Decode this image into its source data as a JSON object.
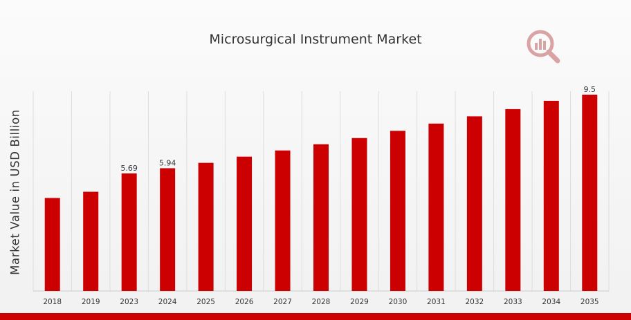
{
  "colors": {
    "bar": "#cc0000",
    "accent": "#cc0000",
    "logo": "#d9a3a3",
    "grid": "#dddddd",
    "text": "#333333"
  },
  "logo": {
    "icon": "analytics-magnifier-logo-icon"
  },
  "chart_data": {
    "type": "bar",
    "title": "Microsurgical Instrument Market",
    "xlabel": "",
    "ylabel": "Market Value in USD Billion",
    "ylim": [
      0,
      10
    ],
    "grid": true,
    "categories": [
      "2018",
      "2019",
      "2023",
      "2024",
      "2025",
      "2026",
      "2027",
      "2028",
      "2029",
      "2030",
      "2031",
      "2032",
      "2033",
      "2034",
      "2035"
    ],
    "values": [
      4.5,
      4.8,
      5.69,
      5.94,
      6.2,
      6.5,
      6.8,
      7.1,
      7.4,
      7.75,
      8.1,
      8.45,
      8.8,
      9.2,
      9.5
    ],
    "data_labels": [
      {
        "category": "2023",
        "text": "5.69"
      },
      {
        "category": "2024",
        "text": "5.94"
      },
      {
        "category": "2035",
        "text": "9.5"
      }
    ]
  }
}
